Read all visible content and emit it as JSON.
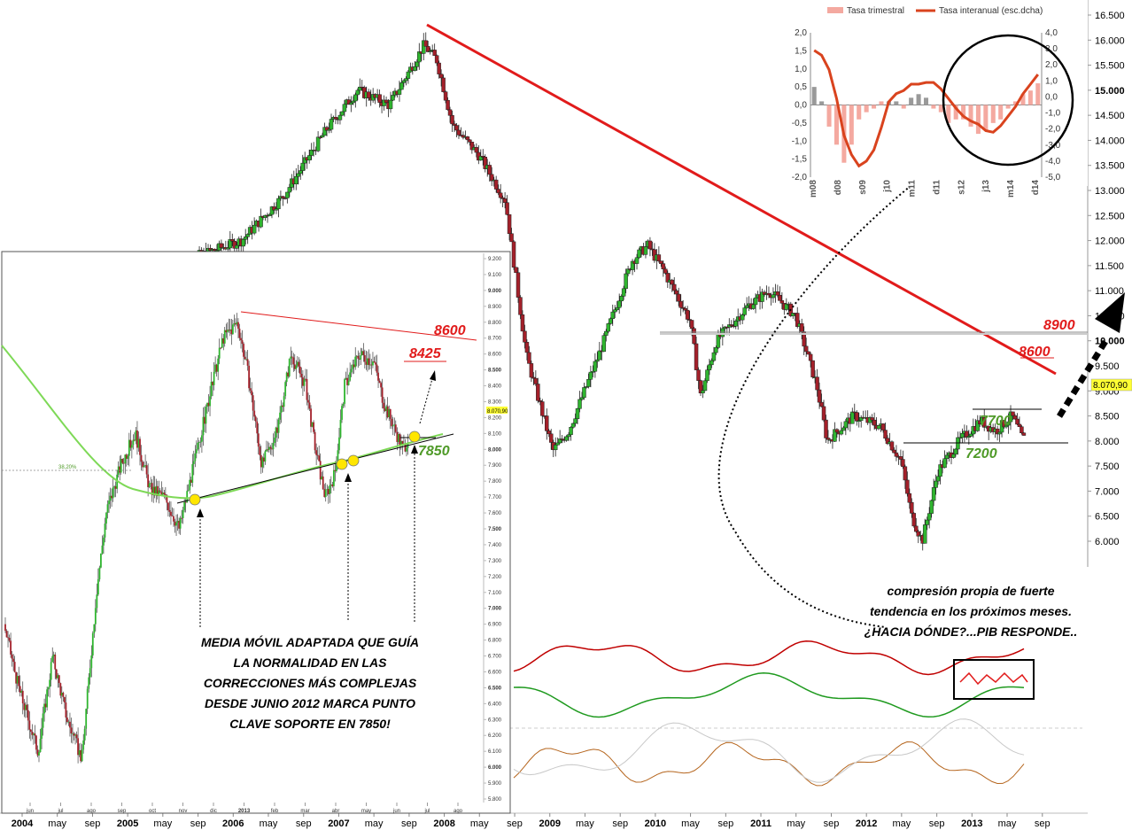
{
  "chart_data": [
    {
      "type": "candlestick",
      "title": "",
      "right_axis": {
        "ylim": [
          5600,
          16600
        ],
        "ticks": [
          "16.500",
          "16.000",
          "15.500",
          "15.000",
          "14.500",
          "14.000",
          "13.500",
          "13.000",
          "12.500",
          "12.000",
          "11.500",
          "11.000",
          "10.500",
          "10.000",
          "9.500",
          "9.000",
          "8.500",
          "8.000",
          "7.500",
          "7.000",
          "6.500",
          "6.000"
        ]
      },
      "x_ticks": [
        "2004",
        "may",
        "sep",
        "2005",
        "may",
        "sep",
        "2006",
        "may",
        "sep",
        "2007",
        "may",
        "sep",
        "2008",
        "may",
        "sep",
        "2009",
        "may",
        "sep",
        "2010",
        "may",
        "sep",
        "2011",
        "may",
        "sep",
        "2012",
        "may",
        "sep",
        "2013",
        "may",
        "sep"
      ],
      "x_tick_bold": [
        true,
        false,
        false,
        true,
        false,
        false,
        true,
        false,
        false,
        true,
        false,
        false,
        true,
        false,
        false,
        true,
        false,
        false,
        true,
        false,
        false,
        true,
        false,
        false,
        true,
        false,
        false,
        true,
        false,
        false
      ],
      "price_path": [
        [
          2004.0,
          7300
        ],
        [
          2004.25,
          7900
        ],
        [
          2004.55,
          8600
        ],
        [
          2004.9,
          9800
        ],
        [
          2005.3,
          11000
        ],
        [
          2005.7,
          11700
        ],
        [
          2006.1,
          12000
        ],
        [
          2006.5,
          12900
        ],
        [
          2006.9,
          14200
        ],
        [
          2007.2,
          15000
        ],
        [
          2007.5,
          14700
        ],
        [
          2007.83,
          15900
        ],
        [
          2007.95,
          15600
        ],
        [
          2008.1,
          14300
        ],
        [
          2008.35,
          13700
        ],
        [
          2008.6,
          12800
        ],
        [
          2008.8,
          9700
        ],
        [
          2009.05,
          7800
        ],
        [
          2009.2,
          8200
        ],
        [
          2009.5,
          9800
        ],
        [
          2009.8,
          11600
        ],
        [
          2009.95,
          11900
        ],
        [
          2010.1,
          11400
        ],
        [
          2010.35,
          10400
        ],
        [
          2010.45,
          8900
        ],
        [
          2010.6,
          10000
        ],
        [
          2010.9,
          10700
        ],
        [
          2011.1,
          11000
        ],
        [
          2011.35,
          10500
        ],
        [
          2011.55,
          9100
        ],
        [
          2011.65,
          8000
        ],
        [
          2011.9,
          8500
        ],
        [
          2012.15,
          8300
        ],
        [
          2012.35,
          7600
        ],
        [
          2012.45,
          6500
        ],
        [
          2012.55,
          6000
        ],
        [
          2012.7,
          7400
        ],
        [
          2012.9,
          8000
        ],
        [
          2013.1,
          8400
        ],
        [
          2013.25,
          8200
        ],
        [
          2013.4,
          8500
        ],
        [
          2013.5,
          8050
        ]
      ],
      "horizontal_levels": [
        {
          "value": 8900,
          "label": "8900"
        },
        {
          "value": 7700,
          "label": "7700"
        },
        {
          "value": 7200,
          "label": "7200"
        }
      ],
      "trendline_label": "8600",
      "last_value": "8.070,90"
    },
    {
      "type": "bar+line",
      "legend": [
        "Tasa trimestral",
        "Tasa interanual (esc.dcha)"
      ],
      "left_ylim": [
        -2.0,
        2.0
      ],
      "left_ticks": [
        "2,0",
        "1,5",
        "1,0",
        "0,5",
        "0,0",
        "-0,5",
        "-1,0",
        "-1,5",
        "-2,0"
      ],
      "right_ylim": [
        -5.0,
        4.0
      ],
      "right_ticks": [
        "4,0",
        "3,0",
        "2,0",
        "1,0",
        "0,0",
        "-1,0",
        "-2,0",
        "-3,0",
        "-4,0",
        "-5,0"
      ],
      "x_labels": [
        "m08",
        "d08",
        "s09",
        "j10",
        "m11",
        "d11",
        "s12",
        "j13",
        "m14",
        "d14"
      ],
      "trimestral": [
        0.5,
        0.1,
        -0.6,
        -1.1,
        -1.6,
        -1.1,
        -0.4,
        -0.2,
        -0.1,
        0.1,
        0.1,
        0.1,
        -0.1,
        0.2,
        0.3,
        0.2,
        -0.1,
        -0.2,
        -0.5,
        -0.4,
        -0.4,
        -0.6,
        -0.8,
        -0.7,
        -0.5,
        -0.4,
        -0.1,
        0.1,
        0.3,
        0.4,
        0.6
      ],
      "interanual": [
        2.9,
        2.6,
        1.7,
        -0.1,
        -2.4,
        -3.6,
        -4.3,
        -4.0,
        -3.3,
        -1.9,
        -0.3,
        0.2,
        0.4,
        0.8,
        0.8,
        0.9,
        0.9,
        0.5,
        -0.1,
        -0.7,
        -1.2,
        -1.5,
        -1.7,
        -2.1,
        -2.2,
        -1.8,
        -1.2,
        -0.6,
        0.2,
        0.8,
        1.4
      ]
    },
    {
      "type": "candlestick",
      "inset": true,
      "y_ticks": [
        "9.200",
        "9.100",
        "9.000",
        "8.900",
        "8.800",
        "8.700",
        "8.600",
        "8.500",
        "8.400",
        "8.300",
        "8.200",
        "8.100",
        "8.000",
        "7.900",
        "7.800",
        "7.700",
        "7.600",
        "7.500",
        "7.400",
        "7.300",
        "7.200",
        "7.100",
        "7.000",
        "6.900",
        "6.800",
        "6.700",
        "6.600",
        "6.500",
        "6.400",
        "6.300",
        "6.200",
        "6.100",
        "6.000",
        "5.900",
        "5.800"
      ],
      "x_ticks": [
        "jun",
        "jul",
        "ago",
        "sep",
        "oct",
        "nov",
        "dic",
        "2013",
        "feb",
        "mar",
        "abr",
        "may",
        "jun",
        "jul",
        "ago"
      ],
      "x_tick_bold": [
        false,
        false,
        false,
        false,
        false,
        false,
        false,
        true,
        false,
        false,
        false,
        false,
        false,
        false,
        false
      ],
      "price_path": [
        [
          0,
          6900
        ],
        [
          0.03,
          6500
        ],
        [
          0.07,
          6100
        ],
        [
          0.1,
          6700
        ],
        [
          0.13,
          6300
        ],
        [
          0.16,
          6050
        ],
        [
          0.19,
          7100
        ],
        [
          0.21,
          7600
        ],
        [
          0.24,
          7900
        ],
        [
          0.27,
          8100
        ],
        [
          0.3,
          7750
        ],
        [
          0.33,
          7700
        ],
        [
          0.36,
          7500
        ],
        [
          0.39,
          7900
        ],
        [
          0.42,
          8300
        ],
        [
          0.45,
          8700
        ],
        [
          0.48,
          8800
        ],
        [
          0.5,
          8500
        ],
        [
          0.53,
          7900
        ],
        [
          0.56,
          8100
        ],
        [
          0.59,
          8600
        ],
        [
          0.62,
          8400
        ],
        [
          0.64,
          8000
        ],
        [
          0.66,
          7700
        ],
        [
          0.68,
          7850
        ],
        [
          0.7,
          8400
        ],
        [
          0.73,
          8600
        ],
        [
          0.76,
          8550
        ],
        [
          0.78,
          8300
        ],
        [
          0.8,
          8150
        ],
        [
          0.82,
          8000
        ],
        [
          0.83,
          8070
        ]
      ],
      "ma_label": "7850",
      "resistance_labels": [
        "8600",
        "8425"
      ],
      "last_value": "8.070,90",
      "fib_label": "38,20%"
    }
  ],
  "annotations": {
    "inset_note": [
      "MEDIA MÓVIL ADAPTADA QUE GUÍA",
      "LA NORMALIDAD EN LAS",
      "CORRECCIONES MÁS COMPLEJAS",
      "DESDE JUNIO 2012 MARCA PUNTO",
      "CLAVE SOPORTE EN 7850!"
    ],
    "compression_note": [
      "compresión propia de fuerte",
      "tendencia en los próximos meses.",
      "¿HACIA DÓNDE?...PIB RESPONDE.."
    ]
  },
  "colors": {
    "up": "#2fb52f",
    "down": "#a3202a",
    "trend": "#e11b1b",
    "ma": "#7ed957",
    "label_red": "#e11b1b",
    "label_green": "#4f9a28",
    "bar_pink": "#f4a9a0",
    "gdp_line": "#d9431e"
  }
}
